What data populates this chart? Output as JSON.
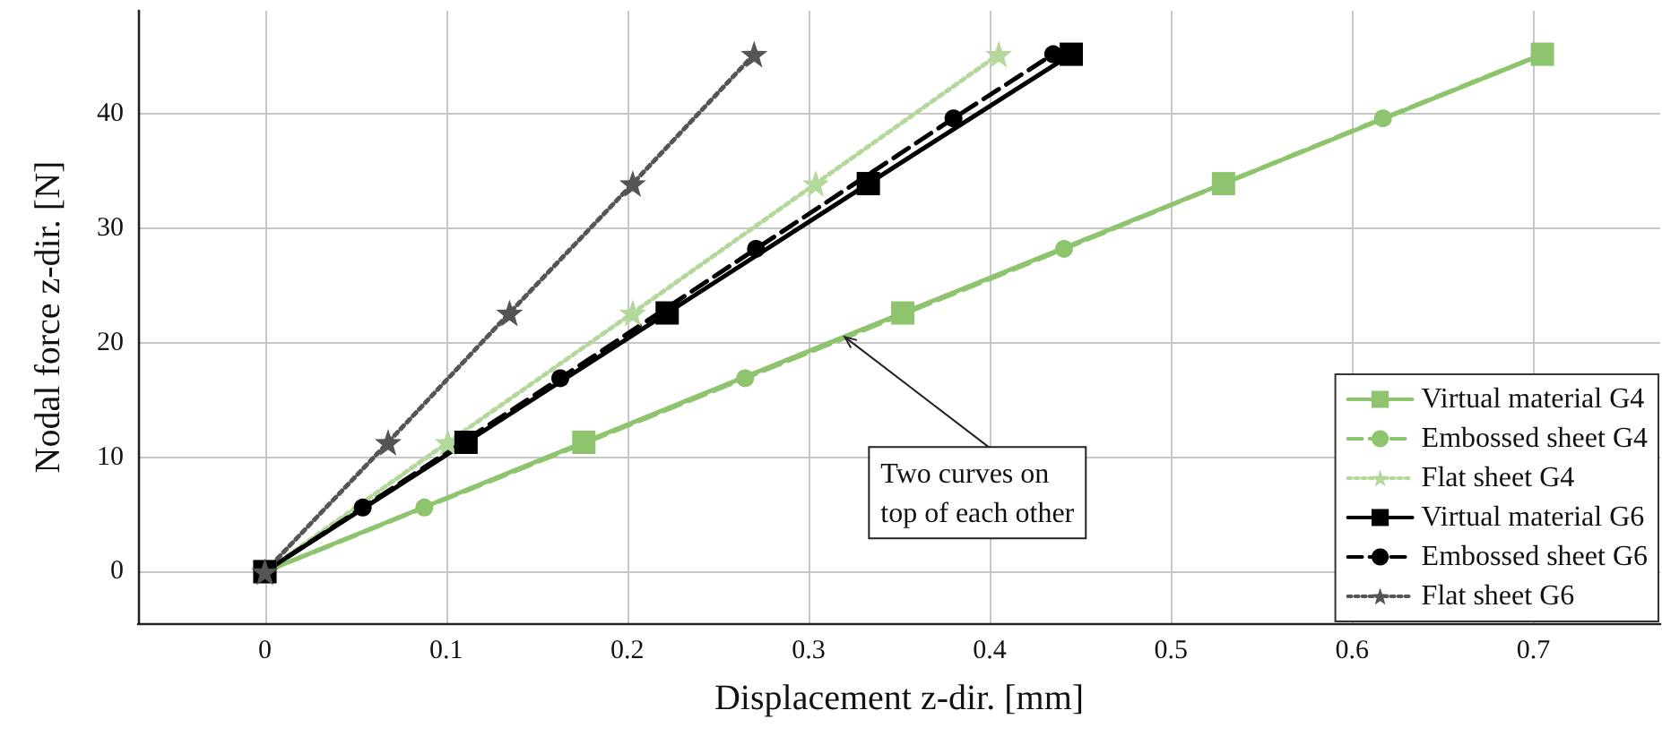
{
  "chart_data": {
    "type": "line",
    "xlabel": "Displacement z-dir. [mm]",
    "ylabel": "Nodal force z-dir. [N]",
    "xlim": [
      -0.07,
      0.77
    ],
    "xticks": [
      0,
      0.1,
      0.2,
      0.3,
      0.4,
      0.5,
      0.6,
      0.7
    ],
    "ylim": [
      -4.5,
      49
    ],
    "yticks": [
      0,
      10,
      20,
      30,
      40
    ],
    "grid": true,
    "legend": "bottom right",
    "annotations": [
      {
        "text": "Two curves on\ntop of each other",
        "x": 0.32,
        "y": 20.5
      }
    ],
    "series": [
      {
        "name": "Virtual material G4",
        "color": "#8fc46e",
        "marker": "square",
        "line_style": "solid",
        "x": [
          0,
          0.176,
          0.352,
          0.529,
          0.705
        ],
        "values": [
          0,
          11.3,
          22.6,
          33.9,
          45.2
        ]
      },
      {
        "name": "Embossed sheet G4",
        "color": "#8fc46e",
        "marker": "circle",
        "line_style": "dashed",
        "x": [
          0,
          0.088,
          0.265,
          0.441,
          0.617,
          0.705
        ],
        "values": [
          0,
          5.6,
          16.9,
          28.2,
          39.6,
          45.2
        ]
      },
      {
        "name": "Flat sheet G4",
        "color": "#b4d89c",
        "marker": "star",
        "line_style": "dotted",
        "x": [
          0,
          0.101,
          0.203,
          0.304,
          0.405
        ],
        "values": [
          0,
          11.3,
          22.6,
          33.9,
          45.2
        ]
      },
      {
        "name": "Virtual material G6",
        "color": "#000000",
        "marker": "square",
        "line_style": "solid",
        "x": [
          0,
          0.111,
          0.222,
          0.333,
          0.445
        ],
        "values": [
          0,
          11.3,
          22.6,
          33.9,
          45.2
        ]
      },
      {
        "name": "Embossed sheet G6",
        "color": "#000000",
        "marker": "circle",
        "line_style": "dashed",
        "x": [
          0,
          0.054,
          0.163,
          0.271,
          0.38,
          0.435
        ],
        "values": [
          0,
          5.6,
          16.9,
          28.2,
          39.6,
          45.2
        ]
      },
      {
        "name": "Flat sheet G6",
        "color": "#555555",
        "marker": "star",
        "line_style": "dotted",
        "x": [
          0,
          0.068,
          0.135,
          0.203,
          0.27
        ],
        "values": [
          0,
          11.3,
          22.6,
          33.9,
          45.2
        ]
      }
    ]
  }
}
